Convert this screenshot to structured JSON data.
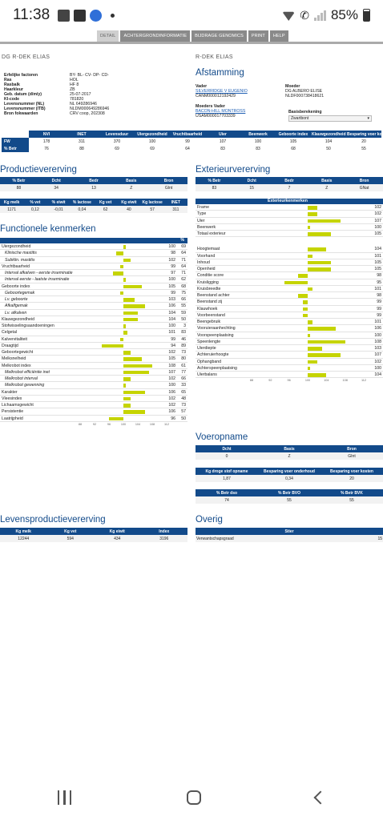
{
  "status": {
    "time": "11:38",
    "battery": "85%"
  },
  "nav_tabs": [
    {
      "label": "DETAIL",
      "active": true
    },
    {
      "label": "ACHTERGRONDINFORMATIE",
      "active": false
    },
    {
      "label": "BIJDRAGE GENOMICS",
      "active": false
    },
    {
      "label": "PRINT",
      "active": false
    },
    {
      "label": "HELP",
      "active": false
    }
  ],
  "animal": {
    "name_left": "DG R-DEK ELIAS",
    "name_right": "R-DEK ELIAS",
    "fields": [
      {
        "k": "Erfelijke factoren",
        "v": "BY- BL- CV- DP- CD-"
      },
      {
        "k": "Ras",
        "v": "HOL"
      },
      {
        "k": "Rasbalk",
        "v": "HF 8"
      },
      {
        "k": "Haarkleur",
        "v": "ZB"
      },
      {
        "k": "Geb. datum (d/m/y)",
        "v": "25-07-2017"
      },
      {
        "k": "KI-code",
        "v": "781820"
      },
      {
        "k": "Levensnummer (NL)",
        "v": "NL 649286946"
      },
      {
        "k": "Levensnummer (ITB)",
        "v": "NLDM000649286946"
      },
      {
        "k": "Bron fokwaarden",
        "v": "CRV coop, 202308"
      }
    ]
  },
  "afstamming": {
    "title": "Afstamming",
    "vader_label": "Vader",
    "vader_name": "SILVERRIDGE V EUGENIO",
    "vader_id": "CANM000012192429",
    "moeder_label": "Moeder",
    "moeder_name": "DG ALBERO ELISE",
    "moeder_id": "NLDF000738418621",
    "moedersvader_label": "Moeders Vader",
    "moedersvader_name": "BACON-HILL MONTROSS",
    "moedersvader_id": "USAM000017703339",
    "basis_label": "Basisberekening",
    "basis_value": "Zwartbont"
  },
  "fw_table": {
    "headers": [
      "",
      "NVI",
      "INET",
      "Levensduur",
      "Uiergezondheid",
      "Vruchtbaarheid",
      "Uier",
      "Beenwerk",
      "Geboorte index",
      "Klauwgezondheid",
      "Besparing voer kosten"
    ],
    "rows": [
      [
        "FW",
        "178",
        "311",
        "370",
        "100",
        "99",
        "107",
        "100",
        "105",
        "104",
        "20"
      ],
      [
        "% Betr",
        "76",
        "88",
        "69",
        "69",
        "64",
        "83",
        "83",
        "68",
        "50",
        "55"
      ]
    ]
  },
  "productie": {
    "title": "Productievererving",
    "t1_headers": [
      "% Betr",
      "Dcht",
      "Bedr",
      "Basis",
      "Bron"
    ],
    "t1_row": [
      "88",
      "34",
      "13",
      "Z",
      "GInt"
    ],
    "t2_headers": [
      "Kg melk",
      "% vet",
      "% eiwit",
      "% lactose",
      "Kg vet",
      "Kg eiwit",
      "Kg lactose",
      "INET"
    ],
    "t2_row": [
      "1171",
      "0,12",
      "-0,01",
      "0,04",
      "62",
      "40",
      "57",
      "311"
    ]
  },
  "exterieur": {
    "title": "Exterieurvererving",
    "t1_headers": [
      "% Betr",
      "Dcht",
      "Bedr",
      "Basis",
      "Bron"
    ],
    "t1_row": [
      "83",
      "15",
      "7",
      "Z",
      "GNat"
    ],
    "list_header": "Exterieurkenmerken",
    "groups": [
      [
        {
          "label": "Frame",
          "value": 102
        },
        {
          "label": "Type",
          "value": 102
        },
        {
          "label": "Uier",
          "value": 107
        },
        {
          "label": "Beenwerk",
          "value": 100
        },
        {
          "label": "Totaal exterieur",
          "value": 105
        }
      ],
      [
        {
          "label": "Hoogtemaat",
          "value": 104
        },
        {
          "label": "Voorhand",
          "value": 101
        },
        {
          "label": "Inhoud",
          "value": 105
        },
        {
          "label": "Openheid",
          "value": 105
        },
        {
          "label": "Conditie score",
          "value": 98
        },
        {
          "label": "Kruisligging",
          "value": 95
        },
        {
          "label": "Kruisbreedte",
          "value": 101
        },
        {
          "label": "Beenstand achter",
          "value": 98
        },
        {
          "label": "Beenstand zij",
          "value": 99
        },
        {
          "label": "Klauwhoek",
          "value": 99
        },
        {
          "label": "Voorbeenstand",
          "value": 99
        },
        {
          "label": "Beengebruik",
          "value": 101
        },
        {
          "label": "Vooruieraanhechting",
          "value": 106
        },
        {
          "label": "Voorspeenplaatsing",
          "value": 100
        },
        {
          "label": "Speenlengte",
          "value": 108
        },
        {
          "label": "Uierdiepte",
          "value": 103
        },
        {
          "label": "Achteruierhoogte",
          "value": 107
        },
        {
          "label": "Ophangband",
          "value": 102
        },
        {
          "label": "Achterspeenplaatsing",
          "value": 100
        },
        {
          "label": "Uierbalans",
          "value": 104
        }
      ]
    ],
    "axis": [
      "88",
      "92",
      "96",
      "100",
      "104",
      "108",
      "112"
    ]
  },
  "functioneel": {
    "title": "Functionele kenmerken",
    "pct_header": "%",
    "items": [
      {
        "label": "Uiergezondheid",
        "value": 100,
        "pct": 69,
        "sub": false
      },
      {
        "label": "Klinische mastitis",
        "value": 98,
        "pct": 64,
        "sub": true
      },
      {
        "label": "Subklin. mastitis",
        "value": 102,
        "pct": 71,
        "sub": true
      },
      {
        "label": "Vruchtbaarheid",
        "value": 99,
        "pct": 64,
        "sub": false
      },
      {
        "label": "Interval afkalven - eerste inseminatie",
        "value": 97,
        "pct": 71,
        "sub": true
      },
      {
        "label": "Interval eerste - laatste inseminatie",
        "value": 100,
        "pct": 62,
        "sub": true
      },
      {
        "label": "Geboorte index",
        "value": 105,
        "pct": 68,
        "sub": false
      },
      {
        "label": "Geboortegemak",
        "value": 99,
        "pct": 75,
        "sub": true
      },
      {
        "label": "Lv. geboorte",
        "value": 103,
        "pct": 66,
        "sub": true
      },
      {
        "label": "Afkalfgemak",
        "value": 106,
        "pct": 55,
        "sub": true
      },
      {
        "label": "Lv. afkalven",
        "value": 104,
        "pct": 59,
        "sub": true
      },
      {
        "label": "Klauwgezondheid",
        "value": 104,
        "pct": 50,
        "sub": false
      },
      {
        "label": "Stofwisselingsaandoeningen",
        "value": 100,
        "pct": 3,
        "sub": false
      },
      {
        "label": "Celgetal",
        "value": 101,
        "pct": 83,
        "sub": false
      },
      {
        "label": "Kalvervitaliteit",
        "value": 99,
        "pct": 46,
        "sub": false
      },
      {
        "label": "Draagtijd",
        "value": 94,
        "pct": 89,
        "sub": false
      },
      {
        "label": "Geboortegewicht",
        "value": 102,
        "pct": 73,
        "sub": false
      },
      {
        "label": "Melksnelheid",
        "value": 105,
        "pct": 80,
        "sub": false
      },
      {
        "label": "Melkrobot index",
        "value": 108,
        "pct": 61,
        "sub": false
      },
      {
        "label": "Melkrobot efficiëntie inet",
        "value": 107,
        "pct": 77,
        "sub": true
      },
      {
        "label": "Melkrobot interval",
        "value": 102,
        "pct": 66,
        "sub": true
      },
      {
        "label": "Melkrobot gewenning",
        "value": 100,
        "pct": 33,
        "sub": true
      },
      {
        "label": "Karakter",
        "value": 106,
        "pct": 65,
        "sub": false
      },
      {
        "label": "Vleesindex",
        "value": 102,
        "pct": 48,
        "sub": false
      },
      {
        "label": "Lichaamsgewicht",
        "value": 102,
        "pct": 73,
        "sub": false
      },
      {
        "label": "Persistentie",
        "value": 106,
        "pct": 57,
        "sub": false
      },
      {
        "label": "Laatrijpheid",
        "value": 96,
        "pct": 50,
        "sub": false
      }
    ],
    "axis": [
      "88",
      "92",
      "96",
      "100",
      "104",
      "108",
      "112"
    ]
  },
  "voeropname": {
    "title": "Voeropname",
    "t1_headers": [
      "Dcht",
      "Basis",
      "Bron"
    ],
    "t1_row": [
      "0",
      "Z",
      "GInt"
    ],
    "t2_headers": [
      "Kg droge stof opname",
      "Besparing voer onderhoud",
      "Besparing voer kosten"
    ],
    "t2_row": [
      "1,87",
      "0,34",
      "20"
    ],
    "t3_headers": [
      "% Betr dso",
      "% Betr BVO",
      "% Betr BVK"
    ],
    "t3_row": [
      "74",
      "55",
      "55"
    ]
  },
  "levensproductie": {
    "title": "Levensproductievererving",
    "headers": [
      "Kg melk",
      "Kg vet",
      "Kg eiwit",
      "Index"
    ],
    "row": [
      "12244",
      "594",
      "434",
      "3196"
    ]
  },
  "overig": {
    "title": "Overig",
    "headers": [
      "Stier"
    ],
    "row_label": "Verwantschapsgraad",
    "row_value": "15"
  },
  "colors": {
    "header_blue": "#124a8a",
    "bar": "#c5d400"
  }
}
